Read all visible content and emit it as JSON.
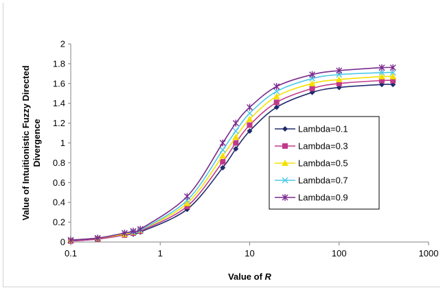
{
  "chart_data": {
    "type": "line",
    "title": "",
    "xlabel_prefix": "Value of ",
    "xlabel_var": "R",
    "ylabel_line1": "Value of Intuitionistic Fuzzy Directed",
    "ylabel_line2": "Divergence",
    "xscale": "log",
    "xlim": [
      0.1,
      1000
    ],
    "ylim": [
      0,
      2
    ],
    "xticks": [
      0.1,
      1,
      10,
      100,
      1000
    ],
    "xtick_labels": [
      "0.1",
      "1",
      "10",
      "100",
      "1000"
    ],
    "yticks": [
      0,
      0.2,
      0.4,
      0.6,
      0.8,
      1,
      1.2,
      1.4,
      1.6,
      1.8,
      2
    ],
    "ytick_labels": [
      "0",
      "0.2",
      "0.4",
      "0.6",
      "0.8",
      "1",
      "1.2",
      "1.4",
      "1.6",
      "1.8",
      "2"
    ],
    "grid": false,
    "legend_position": "center-right",
    "x": [
      0.1,
      0.2,
      0.4,
      0.5,
      0.6,
      2,
      5,
      7,
      10,
      20,
      50,
      100,
      300,
      400
    ],
    "series": [
      {
        "name": "Lambda=0.1",
        "color": "#1f2a6b",
        "marker": "diamond",
        "values": [
          0.01,
          0.03,
          0.07,
          0.08,
          0.1,
          0.33,
          0.75,
          0.94,
          1.12,
          1.36,
          1.51,
          1.56,
          1.59,
          1.59
        ]
      },
      {
        "name": "Lambda=0.3",
        "color": "#c0398a",
        "marker": "square",
        "values": [
          0.01,
          0.03,
          0.07,
          0.09,
          0.11,
          0.36,
          0.81,
          1.0,
          1.18,
          1.41,
          1.55,
          1.6,
          1.63,
          1.63
        ]
      },
      {
        "name": "Lambda=0.5",
        "color": "#f5e000",
        "marker": "triangle",
        "values": [
          0.02,
          0.04,
          0.08,
          0.1,
          0.12,
          0.39,
          0.87,
          1.06,
          1.24,
          1.47,
          1.6,
          1.64,
          1.67,
          1.67
        ]
      },
      {
        "name": "Lambda=0.7",
        "color": "#4cc8e8",
        "marker": "x",
        "values": [
          0.02,
          0.04,
          0.09,
          0.1,
          0.12,
          0.42,
          0.93,
          1.12,
          1.3,
          1.52,
          1.65,
          1.69,
          1.71,
          1.71
        ]
      },
      {
        "name": "Lambda=0.9",
        "color": "#7a2a8c",
        "marker": "star",
        "values": [
          0.02,
          0.04,
          0.09,
          0.11,
          0.13,
          0.46,
          1.0,
          1.2,
          1.36,
          1.57,
          1.69,
          1.73,
          1.76,
          1.76
        ]
      }
    ]
  }
}
